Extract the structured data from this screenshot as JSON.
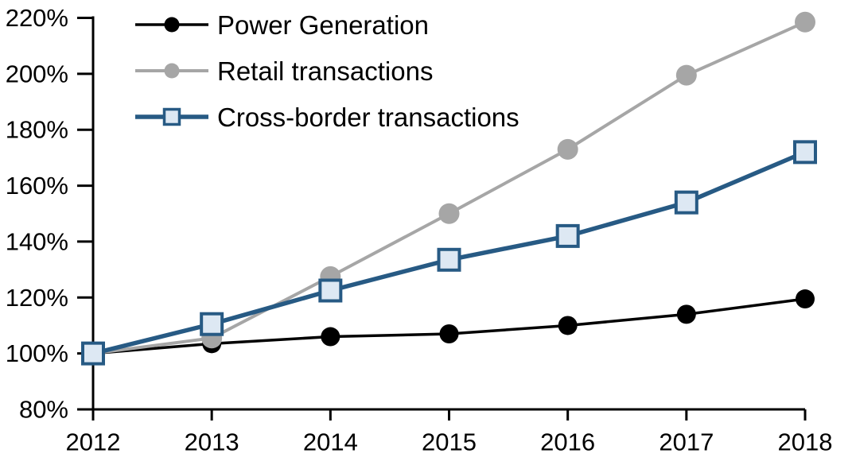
{
  "chart_data": {
    "type": "line",
    "title": "",
    "xlabel": "",
    "ylabel": "",
    "x": [
      "2012",
      "2013",
      "2014",
      "2015",
      "2016",
      "2017",
      "2018"
    ],
    "series": [
      {
        "name": "Power Generation",
        "values": [
          100,
          103.5,
          106,
          107,
          110,
          114,
          119.5
        ],
        "color": "#000000",
        "marker": "circle",
        "marker_fill": "#000000",
        "line_width": 3.5,
        "marker_size": 12
      },
      {
        "name": "Retail transactions",
        "values": [
          100,
          105.5,
          127.5,
          150,
          173,
          199.5,
          218.5
        ],
        "color": "#A6A6A6",
        "marker": "circle",
        "marker_fill": "#A6A6A6",
        "line_width": 4,
        "marker_size": 13
      },
      {
        "name": "Cross-border transactions",
        "values": [
          100,
          110.5,
          122.5,
          133.5,
          142,
          154,
          172
        ],
        "color": "#275A84",
        "marker": "square",
        "marker_fill": "#DDE8F3",
        "line_width": 5.5,
        "marker_size": 13
      }
    ],
    "ylim": [
      80,
      220
    ],
    "ytick_step": 20,
    "ytick_suffix": "%",
    "ytick_labels": [
      "80%",
      "100%",
      "120%",
      "140%",
      "160%",
      "180%",
      "200%",
      "220%"
    ],
    "xtick_labels": [
      "2012",
      "2013",
      "2014",
      "2015",
      "2016",
      "2017",
      "2018"
    ],
    "grid": false,
    "legend_position": "top-left",
    "axis_color": "#000000"
  }
}
